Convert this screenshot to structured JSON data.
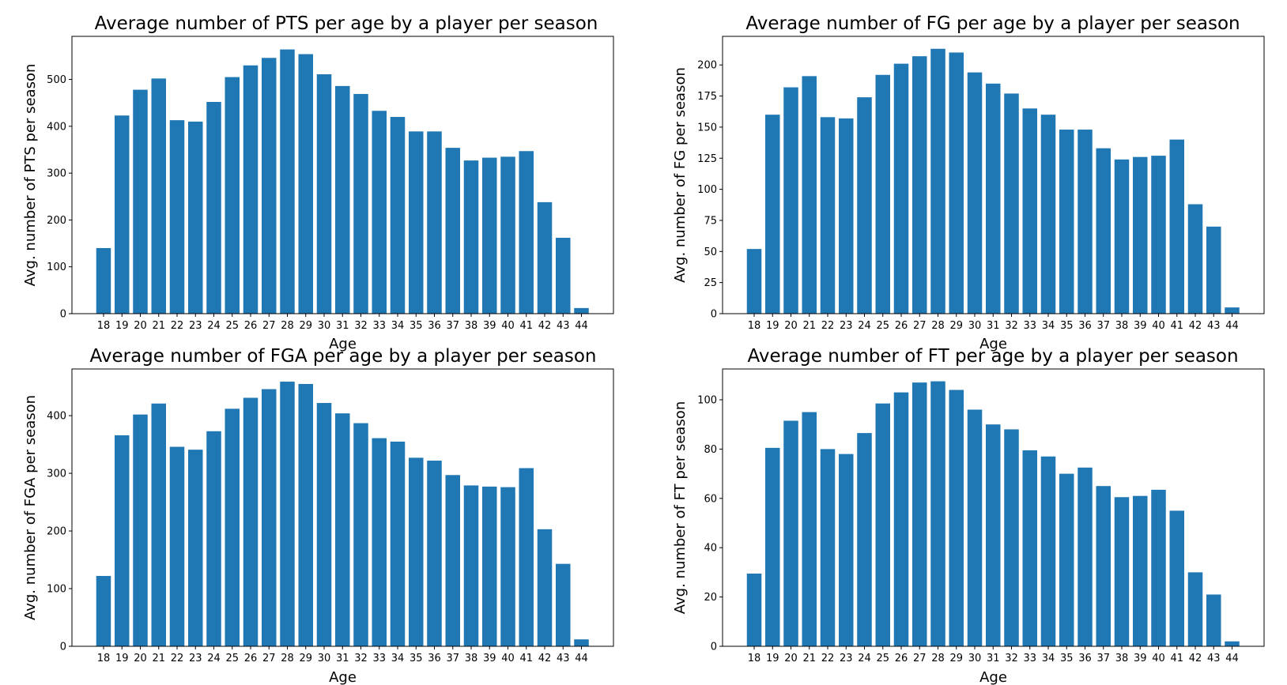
{
  "chart_data": [
    {
      "type": "bar",
      "title": "Average number of PTS per age by a player per season",
      "xlabel": "Age",
      "ylabel": "Avg. number of PTS per season",
      "color": "#1f77b4",
      "categories": [
        "18",
        "19",
        "20",
        "21",
        "22",
        "23",
        "24",
        "25",
        "26",
        "27",
        "28",
        "29",
        "30",
        "31",
        "32",
        "33",
        "34",
        "35",
        "36",
        "37",
        "38",
        "39",
        "40",
        "41",
        "42",
        "43",
        "44"
      ],
      "values": [
        140,
        423,
        478,
        502,
        413,
        410,
        452,
        505,
        530,
        546,
        564,
        554,
        511,
        486,
        469,
        433,
        420,
        389,
        389,
        354,
        327,
        333,
        335,
        347,
        238,
        162,
        12
      ],
      "yticks": [
        0,
        100,
        200,
        300,
        400,
        500
      ],
      "ylim": [
        0,
        592
      ],
      "grid": false
    },
    {
      "type": "bar",
      "title": "Average number of FG per age by a player per season",
      "xlabel": "Age",
      "ylabel": "Avg. number of FG per season",
      "color": "#1f77b4",
      "categories": [
        "18",
        "19",
        "20",
        "21",
        "22",
        "23",
        "24",
        "25",
        "26",
        "27",
        "28",
        "29",
        "30",
        "31",
        "32",
        "33",
        "34",
        "35",
        "36",
        "37",
        "38",
        "39",
        "40",
        "41",
        "42",
        "43",
        "44"
      ],
      "values": [
        52,
        160,
        182,
        191,
        158,
        157,
        174,
        192,
        201,
        207,
        213,
        210,
        194,
        185,
        177,
        165,
        160,
        148,
        148,
        133,
        124,
        126,
        127,
        140,
        88,
        70,
        5
      ],
      "yticks": [
        0,
        25,
        50,
        75,
        100,
        125,
        150,
        175,
        200
      ],
      "yticklabels": [
        "0",
        "25",
        "50",
        "75",
        "100",
        "125",
        "150",
        "175",
        "200"
      ],
      "ylim": [
        0,
        223
      ],
      "grid": false
    },
    {
      "type": "bar",
      "title": "Average number of FGA per age by a player per season",
      "xlabel": "Age",
      "ylabel": "Avg. number of FGA per season",
      "color": "#1f77b4",
      "categories": [
        "18",
        "19",
        "20",
        "21",
        "22",
        "23",
        "24",
        "25",
        "26",
        "27",
        "28",
        "29",
        "30",
        "31",
        "32",
        "33",
        "34",
        "35",
        "36",
        "37",
        "38",
        "39",
        "40",
        "41",
        "42",
        "43",
        "44"
      ],
      "values": [
        122,
        366,
        402,
        421,
        346,
        341,
        373,
        412,
        431,
        446,
        459,
        455,
        422,
        404,
        387,
        361,
        355,
        327,
        322,
        297,
        279,
        277,
        276,
        309,
        203,
        143,
        12
      ],
      "yticks": [
        0,
        100,
        200,
        300,
        400
      ],
      "ylim": [
        0,
        481
      ],
      "grid": false
    },
    {
      "type": "bar",
      "title": "Average number of FT per age by a player per season",
      "xlabel": "Age",
      "ylabel": "Avg. number of FT per season",
      "color": "#1f77b4",
      "categories": [
        "18",
        "19",
        "20",
        "21",
        "22",
        "23",
        "24",
        "25",
        "26",
        "27",
        "28",
        "29",
        "30",
        "31",
        "32",
        "33",
        "34",
        "35",
        "36",
        "37",
        "38",
        "39",
        "40",
        "41",
        "42",
        "43",
        "44"
      ],
      "values": [
        29.5,
        80.5,
        91.5,
        95,
        80,
        78,
        86.5,
        98.5,
        103,
        107,
        107.5,
        104,
        96,
        90,
        88,
        79.5,
        77,
        70,
        72.5,
        65,
        60.5,
        61,
        63.5,
        55,
        30,
        21,
        2
      ],
      "yticks": [
        0,
        20,
        40,
        60,
        80,
        100
      ],
      "ylim": [
        0,
        112.5
      ],
      "grid": false
    }
  ]
}
